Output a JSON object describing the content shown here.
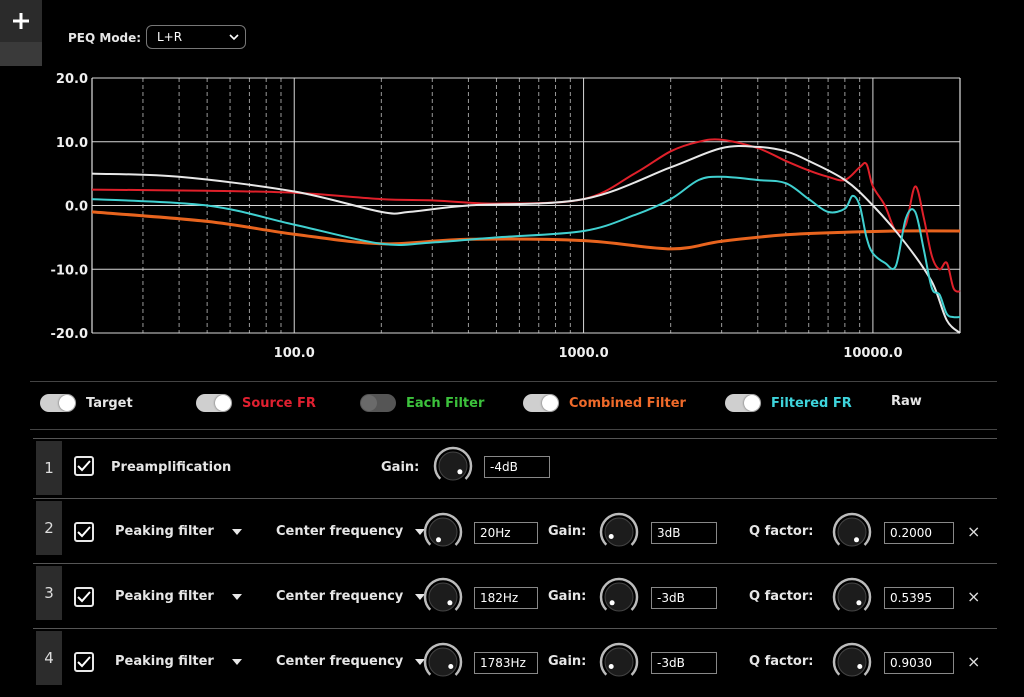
{
  "toolbar": {
    "add_label": "+"
  },
  "peq_mode": {
    "label": "PEQ Mode:",
    "value": "L+R"
  },
  "chart_data": {
    "type": "line",
    "x_scale": "log",
    "xlim": [
      20,
      20000
    ],
    "ylim": [
      -20,
      20
    ],
    "x_ticks": [
      100,
      1000,
      10000
    ],
    "x_tick_labels": [
      "100.0",
      "1000.0",
      "10000.0"
    ],
    "y_ticks": [
      20,
      10,
      0,
      -10,
      -20
    ],
    "y_tick_labels": [
      "20.0",
      "10.0",
      "0.0",
      "-10.0",
      "-20.0"
    ],
    "grid": true,
    "series": [
      {
        "name": "Combined Filter",
        "color": "#e8641e",
        "width": 3,
        "x": [
          20,
          50,
          100,
          200,
          400,
          1000,
          2000,
          3000,
          5000,
          8000,
          12000,
          20000
        ],
        "y": [
          -1,
          -2.5,
          -4.5,
          -6,
          -5.3,
          -5.5,
          -6.8,
          -5.6,
          -4.6,
          -4.2,
          -4.0,
          -4.0
        ]
      },
      {
        "name": "Source FR",
        "color": "#e0202a",
        "width": 2,
        "x": [
          20,
          50,
          100,
          200,
          300,
          500,
          1000,
          1500,
          2000,
          2500,
          3000,
          4000,
          5000,
          6000,
          7000,
          8000,
          9000,
          9500,
          10000,
          11000,
          12000,
          13000,
          14000,
          15000,
          16000,
          17000,
          18000,
          19000,
          20000
        ],
        "y": [
          2.5,
          2.3,
          2.0,
          1.0,
          0.8,
          0.3,
          1.0,
          5.0,
          8.5,
          10.0,
          10.3,
          9.0,
          7.0,
          5.5,
          4.5,
          4.0,
          6.0,
          6.5,
          3.0,
          0.0,
          -4.0,
          -3.0,
          3.0,
          -2.0,
          -8.0,
          -10.0,
          -9.0,
          -13.0,
          -13.5
        ]
      },
      {
        "name": "Target",
        "color": "#e8e8e8",
        "width": 2,
        "x": [
          20,
          40,
          100,
          200,
          250,
          400,
          1000,
          2000,
          3000,
          4000,
          5000,
          6000,
          8000,
          10000,
          13000,
          16000,
          18000,
          20000
        ],
        "y": [
          5,
          4.5,
          2.2,
          -1.0,
          -1.0,
          0.0,
          1.0,
          6.0,
          9.0,
          9.2,
          8.5,
          7.0,
          4.0,
          0.0,
          -6.0,
          -12.0,
          -18.0,
          -20.0
        ]
      },
      {
        "name": "Filtered FR",
        "color": "#40d0d0",
        "width": 2,
        "x": [
          20,
          50,
          100,
          200,
          300,
          500,
          1000,
          1500,
          2000,
          2500,
          3000,
          4000,
          5000,
          6000,
          7000,
          8000,
          8500,
          9000,
          9500,
          10000,
          11000,
          12000,
          13000,
          14000,
          15000,
          16000,
          17000,
          18000,
          19000,
          20000
        ],
        "y": [
          1.0,
          0.0,
          -3.0,
          -6.0,
          -5.8,
          -5.0,
          -4.0,
          -1.5,
          1.0,
          4.0,
          4.5,
          4.0,
          3.5,
          1.0,
          -1.0,
          -0.5,
          1.5,
          0.0,
          -5.0,
          -7.5,
          -9.0,
          -9.5,
          -2.0,
          -1.0,
          -7.0,
          -13.0,
          -14.0,
          -17.0,
          -17.5,
          -17.5
        ]
      }
    ]
  },
  "legend": [
    {
      "label": "Target",
      "color": "#e6e6e6",
      "on": true
    },
    {
      "label": "Source FR",
      "color": "#e02030",
      "on": true
    },
    {
      "label": "Each Filter",
      "color": "#3cc23c",
      "on": false
    },
    {
      "label": "Combined Filter",
      "color": "#ef6a2a",
      "on": true
    },
    {
      "label": "Filtered FR",
      "color": "#3ed4dc",
      "on": true
    },
    {
      "label": "Raw",
      "color": "#e6e6e6"
    }
  ],
  "preamp": {
    "num": "1",
    "label": "Preamplification",
    "gain_label": "Gain:",
    "gain": "-4dB"
  },
  "filters": [
    {
      "num": "2",
      "type": "Peaking filter",
      "freq_label": "Center frequency",
      "freq": "20Hz",
      "gain_label": "Gain:",
      "gain": "3dB",
      "q_label": "Q factor:",
      "q": "0.2000",
      "close": "×"
    },
    {
      "num": "3",
      "type": "Peaking filter",
      "freq_label": "Center frequency",
      "freq": "182Hz",
      "gain_label": "Gain:",
      "gain": "-3dB",
      "q_label": "Q factor:",
      "q": "0.5395",
      "close": "×"
    },
    {
      "num": "4",
      "type": "Peaking filter",
      "freq_label": "Center frequency",
      "freq": "1783Hz",
      "gain_label": "Gain:",
      "gain": "-3dB",
      "q_label": "Q factor:",
      "q": "0.9030",
      "close": "×"
    }
  ]
}
